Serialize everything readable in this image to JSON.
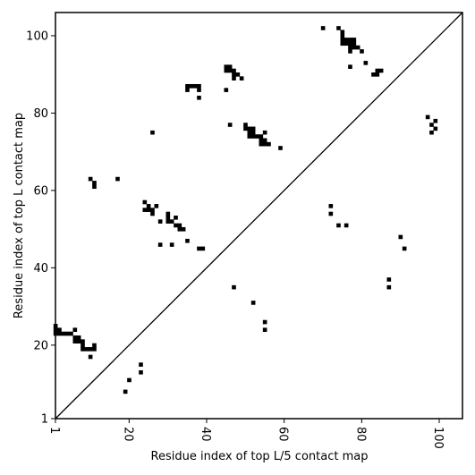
{
  "chart_data": {
    "type": "scatter",
    "title": "",
    "xlabel": "Residue index of top L/5 contact map",
    "ylabel": "Residue index of top L contact map",
    "xlim": [
      1,
      106
    ],
    "ylim": [
      1,
      106
    ],
    "x_ticks": [
      1,
      20,
      40,
      60,
      80,
      100
    ],
    "y_ticks": [
      1,
      20,
      40,
      60,
      80,
      100
    ],
    "x_tick_labels": [
      "1",
      "20",
      "40",
      "60",
      "80",
      "100"
    ],
    "y_tick_labels": [
      "1",
      "20",
      "40",
      "60",
      "80",
      "100"
    ],
    "x_tick_rotation": -90,
    "grid": false,
    "diagonal_line": true,
    "marker": "square",
    "marker_color": "#000000",
    "lower_points": [
      [
        19,
        8
      ],
      [
        20,
        11
      ],
      [
        23,
        13
      ],
      [
        23,
        15
      ],
      [
        47,
        35
      ],
      [
        52,
        31
      ],
      [
        55,
        26
      ],
      [
        55,
        24
      ],
      [
        72,
        56
      ],
      [
        72,
        54
      ],
      [
        74,
        51
      ],
      [
        76,
        51
      ],
      [
        87,
        37
      ],
      [
        87,
        35
      ],
      [
        90,
        48
      ],
      [
        91,
        45
      ]
    ],
    "upper_points": [
      [
        1,
        25
      ],
      [
        1,
        24
      ],
      [
        1,
        23
      ],
      [
        2,
        24
      ],
      [
        2,
        23
      ],
      [
        3,
        23
      ],
      [
        4,
        23
      ],
      [
        5,
        23
      ],
      [
        6,
        24
      ],
      [
        6,
        22
      ],
      [
        6,
        21
      ],
      [
        7,
        22
      ],
      [
        7,
        21
      ],
      [
        8,
        21
      ],
      [
        8,
        20
      ],
      [
        8,
        19
      ],
      [
        9,
        19
      ],
      [
        10,
        19
      ],
      [
        11,
        20
      ],
      [
        11,
        19
      ],
      [
        10,
        17
      ],
      [
        10,
        63
      ],
      [
        11,
        62
      ],
      [
        11,
        61
      ],
      [
        17,
        63
      ],
      [
        24,
        57
      ],
      [
        24,
        55
      ],
      [
        25,
        56
      ],
      [
        25,
        55
      ],
      [
        26,
        55
      ],
      [
        26,
        54
      ],
      [
        27,
        56
      ],
      [
        28,
        52
      ],
      [
        28,
        46
      ],
      [
        30,
        54
      ],
      [
        30,
        53
      ],
      [
        30,
        52
      ],
      [
        31,
        52
      ],
      [
        31,
        46
      ],
      [
        32,
        53
      ],
      [
        32,
        51
      ],
      [
        33,
        51
      ],
      [
        33,
        50
      ],
      [
        34,
        50
      ],
      [
        35,
        47
      ],
      [
        38,
        45
      ],
      [
        39,
        45
      ],
      [
        26,
        75
      ],
      [
        35,
        87
      ],
      [
        35,
        86
      ],
      [
        36,
        87
      ],
      [
        37,
        87
      ],
      [
        38,
        87
      ],
      [
        38,
        86
      ],
      [
        38,
        84
      ],
      [
        45,
        92
      ],
      [
        45,
        91
      ],
      [
        45,
        86
      ],
      [
        46,
        92
      ],
      [
        46,
        91
      ],
      [
        47,
        91
      ],
      [
        47,
        90
      ],
      [
        47,
        89
      ],
      [
        48,
        90
      ],
      [
        49,
        89
      ],
      [
        46,
        77
      ],
      [
        50,
        77
      ],
      [
        50,
        76
      ],
      [
        51,
        76
      ],
      [
        51,
        75
      ],
      [
        51,
        74
      ],
      [
        52,
        76
      ],
      [
        52,
        75
      ],
      [
        52,
        74
      ],
      [
        53,
        74
      ],
      [
        54,
        74
      ],
      [
        54,
        73
      ],
      [
        54,
        72
      ],
      [
        55,
        75
      ],
      [
        55,
        73
      ],
      [
        55,
        72
      ],
      [
        56,
        72
      ],
      [
        59,
        71
      ],
      [
        70,
        102
      ],
      [
        74,
        102
      ],
      [
        75,
        101
      ],
      [
        75,
        100
      ],
      [
        75,
        99
      ],
      [
        75,
        98
      ],
      [
        76,
        99
      ],
      [
        76,
        98
      ],
      [
        77,
        99
      ],
      [
        77,
        98
      ],
      [
        77,
        97
      ],
      [
        77,
        96
      ],
      [
        78,
        99
      ],
      [
        78,
        98
      ],
      [
        78,
        97
      ],
      [
        79,
        97
      ],
      [
        80,
        96
      ],
      [
        81,
        93
      ],
      [
        77,
        92
      ],
      [
        83,
        90
      ],
      [
        84,
        91
      ],
      [
        84,
        90
      ],
      [
        85,
        91
      ],
      [
        97,
        79
      ],
      [
        98,
        77
      ],
      [
        98,
        75
      ],
      [
        99,
        78
      ],
      [
        99,
        76
      ]
    ]
  }
}
